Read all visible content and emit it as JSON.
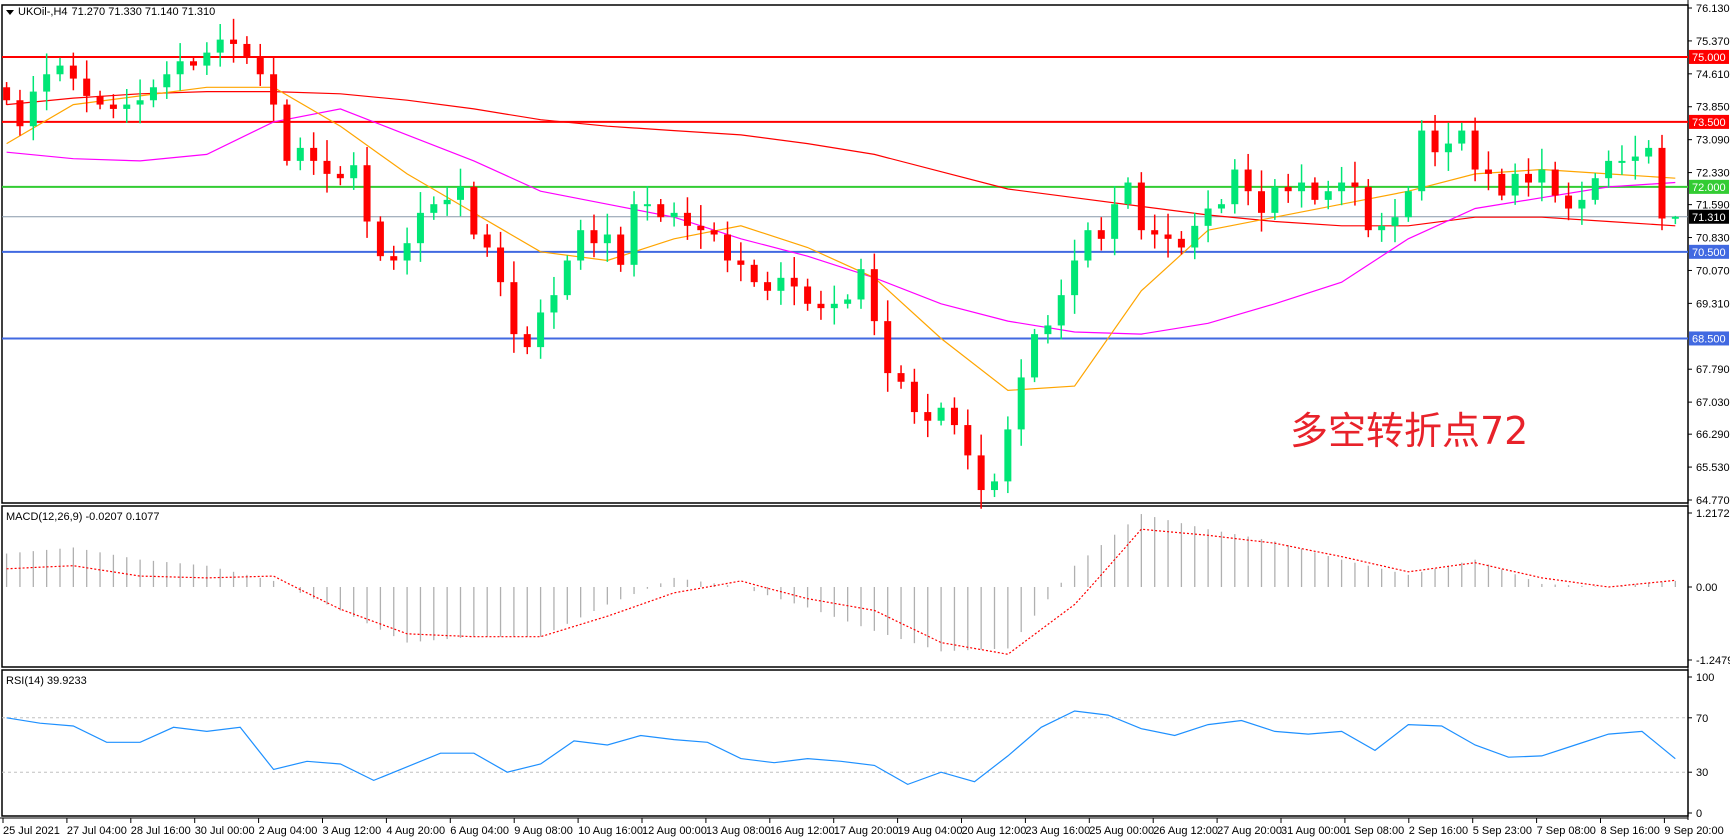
{
  "header": {
    "symbol": "UKOil-,H4",
    "ohlc": "71.270 71.330 71.140 71.310"
  },
  "annotation": "多空转折点72",
  "colors": {
    "bull": "#00e676",
    "bear": "#ff0000",
    "ma_fast": "#ffa500",
    "ma_mid": "#ff00ff",
    "ma_slow": "#ff0000",
    "macd_hist": "#b0b0b0",
    "macd_signal": "#ff0000",
    "rsi": "#1e90ff"
  },
  "chart_data": [
    {
      "type": "candlestick",
      "title": "UKOil-,H4",
      "ylim": [
        64.77,
        76.13
      ],
      "y_ticks": [
        "76.130",
        "75.370",
        "74.610",
        "73.850",
        "73.090",
        "72.330",
        "71.590",
        "70.830",
        "70.070",
        "69.310",
        "67.790",
        "67.030",
        "66.290",
        "65.530",
        "64.770"
      ],
      "x_ticks": [
        "25 Jul 2021",
        "27 Jul 04:00",
        "28 Jul 16:00",
        "30 Jul 00:00",
        "2 Aug 04:00",
        "3 Aug 12:00",
        "4 Aug 20:00",
        "6 Aug 04:00",
        "9 Aug 08:00",
        "10 Aug 16:00",
        "12 Aug 00:00",
        "13 Aug 08:00",
        "16 Aug 12:00",
        "17 Aug 20:00",
        "19 Aug 04:00",
        "20 Aug 12:00",
        "23 Aug 16:00",
        "25 Aug 00:00",
        "26 Aug 12:00",
        "27 Aug 20:00",
        "31 Aug 00:00",
        "1 Sep 08:00",
        "2 Sep 16:00",
        "5 Sep 23:00",
        "7 Sep 08:00",
        "8 Sep 16:00",
        "9 Sep 20:00"
      ],
      "last_bar": {
        "open": 71.27,
        "high": 71.33,
        "low": 71.14,
        "close": 71.31
      },
      "close": [
        74.0,
        73.4,
        74.2,
        74.6,
        74.8,
        74.5,
        74.1,
        73.9,
        73.8,
        73.9,
        74.0,
        74.3,
        74.6,
        74.9,
        74.8,
        75.1,
        75.4,
        75.3,
        75.0,
        74.6,
        73.9,
        72.6,
        72.9,
        72.6,
        72.3,
        72.2,
        72.5,
        71.2,
        70.4,
        70.3,
        70.7,
        71.4,
        71.6,
        71.7,
        72.0,
        70.9,
        70.6,
        69.8,
        68.6,
        68.3,
        69.1,
        69.5,
        70.3,
        71.0,
        70.7,
        70.9,
        70.2,
        71.6,
        71.6,
        71.3,
        71.4,
        71.1,
        71.0,
        70.9,
        70.3,
        70.2,
        69.8,
        69.6,
        69.9,
        69.7,
        69.3,
        69.2,
        69.3,
        69.4,
        70.1,
        68.9,
        67.7,
        67.5,
        66.8,
        66.6,
        66.9,
        66.5,
        65.8,
        65.0,
        65.2,
        66.4,
        67.6,
        68.6,
        68.8,
        69.5,
        70.3,
        71.0,
        70.8,
        71.6,
        72.1,
        71.0,
        70.9,
        70.8,
        70.6,
        71.1,
        71.5,
        71.6,
        72.4,
        71.9,
        71.4,
        72.0,
        71.9,
        72.1,
        71.7,
        71.9,
        72.1,
        72.0,
        71.0,
        71.1,
        71.3,
        71.9,
        73.3,
        72.8,
        73.0,
        73.3,
        72.4,
        72.3,
        71.8,
        72.3,
        72.1,
        72.4,
        71.8,
        71.5,
        71.7,
        72.2,
        72.6,
        72.6,
        72.7,
        72.9,
        71.27,
        71.31
      ],
      "moving_averages_every_5_bars": {
        "fast": [
          73.0,
          73.9,
          74.1,
          74.3,
          74.3,
          73.4,
          72.3,
          71.4,
          70.5,
          70.3,
          70.8,
          71.1,
          70.6,
          69.9,
          68.5,
          67.3,
          67.4,
          69.6,
          71.0,
          71.3,
          71.6,
          71.9,
          72.3,
          72.4,
          72.3,
          72.2
        ],
        "mid": [
          72.8,
          72.65,
          72.6,
          72.75,
          73.5,
          73.8,
          73.2,
          72.6,
          71.9,
          71.6,
          71.3,
          70.8,
          70.4,
          69.9,
          69.3,
          68.9,
          68.65,
          68.6,
          68.85,
          69.3,
          69.8,
          70.8,
          71.5,
          71.75,
          72.0,
          72.1
        ],
        "slow": [
          73.9,
          74.05,
          74.15,
          74.2,
          74.2,
          74.15,
          74.0,
          73.8,
          73.55,
          73.4,
          73.3,
          73.2,
          73.0,
          72.75,
          72.35,
          71.95,
          71.75,
          71.55,
          71.35,
          71.2,
          71.1,
          71.1,
          71.3,
          71.3,
          71.2,
          71.1
        ]
      },
      "levels": [
        {
          "value": 75.0,
          "label": "75.000",
          "color": "#ff0000"
        },
        {
          "value": 73.5,
          "label": "73.500",
          "color": "#ff0000"
        },
        {
          "value": 72.0,
          "label": "72.000",
          "color": "#33cc33"
        },
        {
          "value": 71.31,
          "label": "71.310",
          "color": "#000000",
          "line_color": "#8899aa"
        },
        {
          "value": 70.5,
          "label": "70.500",
          "color": "#4169e1"
        },
        {
          "value": 68.5,
          "label": "68.500",
          "color": "#4169e1"
        }
      ]
    },
    {
      "type": "bar+line",
      "title": "MACD(12,26,9) -0.0207 0.1077",
      "ylim": [
        -1.2479,
        1.2172
      ],
      "y_ticks": [
        "1.2172",
        "0.00",
        "-1.2479"
      ],
      "histogram_every_5_bars": [
        0.55,
        0.65,
        0.45,
        0.35,
        0.1,
        -0.4,
        -0.95,
        -0.85,
        -0.85,
        -0.3,
        0.15,
        0.0,
        -0.35,
        -0.75,
        -1.1,
        -1.05,
        0.35,
        1.2,
        0.95,
        0.75,
        0.45,
        0.2,
        0.45,
        0.05,
        0.0,
        0.1
      ],
      "signal_every_5_bars": [
        0.3,
        0.35,
        0.18,
        0.15,
        0.18,
        -0.38,
        -0.8,
        -0.85,
        -0.85,
        -0.5,
        -0.1,
        0.1,
        -0.2,
        -0.4,
        -0.95,
        -1.15,
        -0.3,
        0.95,
        0.85,
        0.72,
        0.5,
        0.25,
        0.4,
        0.15,
        0.0,
        0.11
      ]
    },
    {
      "type": "line",
      "title": "RSI(14) 39.9233",
      "ylim": [
        0,
        100
      ],
      "y_ticks": [
        "100",
        "70",
        "30",
        "0"
      ],
      "levels": [
        70,
        30
      ],
      "values": [
        70,
        66,
        64,
        52,
        52,
        63,
        60,
        63,
        32,
        38,
        36,
        24,
        34,
        44,
        44,
        30,
        36,
        53,
        50,
        57,
        54,
        52,
        40,
        37,
        40,
        38,
        35,
        21,
        30,
        23,
        42,
        63,
        75,
        72,
        62,
        57,
        65,
        68,
        60,
        58,
        60,
        46,
        65,
        64,
        50,
        41,
        42,
        50,
        58,
        60,
        39.9233
      ]
    }
  ]
}
